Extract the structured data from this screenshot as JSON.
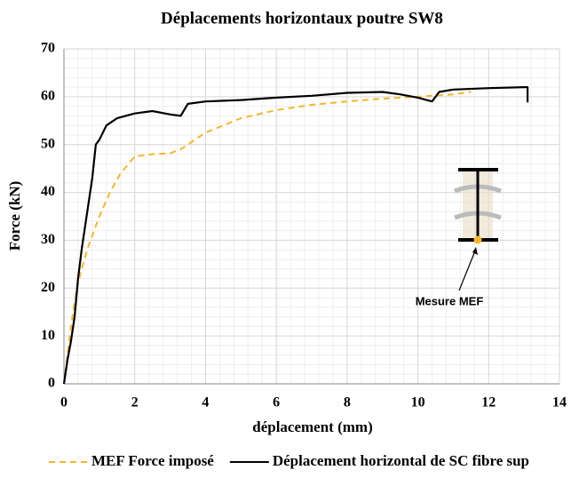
{
  "chart_data": {
    "type": "line",
    "title": "Déplacements horizontaux poutre SW8",
    "x_label": "déplacement (mm)",
    "y_label": "Force (kN)",
    "annotation": "Mesure MEF",
    "xlim": [
      0,
      14
    ],
    "xticks": [
      0,
      2,
      4,
      6,
      8,
      10,
      12,
      14
    ],
    "ylim": [
      0,
      70
    ],
    "yticks": [
      0,
      10,
      20,
      30,
      40,
      50,
      60,
      70
    ],
    "grid": true,
    "legend": "bottom",
    "series": [
      {
        "name": "MEF Force imposé",
        "color": "#f5b62a",
        "dashed": true,
        "x": [
          0,
          0.1,
          0.2,
          0.3,
          0.4,
          0.5,
          0.7,
          1.0,
          1.3,
          1.6,
          2.0,
          2.5,
          3.0,
          3.3,
          3.6,
          4.0,
          5.0,
          6.0,
          7.0,
          8.0,
          9.0,
          10.0,
          11.0,
          11.5
        ],
        "values": [
          0,
          6,
          12,
          17,
          21,
          24,
          29,
          35,
          40,
          44,
          47.5,
          48,
          48.2,
          49,
          50.5,
          52.5,
          55.5,
          57.2,
          58.3,
          59,
          59.6,
          60,
          60.5,
          61
        ]
      },
      {
        "name": "Déplacement horizontal de SC fibre sup",
        "color": "#000000",
        "dashed": false,
        "x": [
          0,
          0.1,
          0.2,
          0.3,
          0.4,
          0.5,
          0.6,
          0.7,
          0.8,
          0.9,
          1.0,
          1.2,
          1.5,
          2.0,
          2.5,
          3.0,
          3.3,
          3.5,
          4.0,
          5.0,
          6.0,
          7.0,
          8.0,
          9.0,
          9.5,
          10.0,
          10.4,
          10.6,
          11.0,
          12.0,
          13.0,
          13.1,
          13.1
        ],
        "values": [
          0,
          5,
          9,
          14,
          22,
          28,
          33,
          38,
          43,
          50,
          51,
          54,
          55.5,
          56.5,
          57,
          56.3,
          56,
          58.5,
          59,
          59.3,
          59.8,
          60.2,
          60.8,
          61,
          60.5,
          59.8,
          59,
          61,
          61.5,
          61.8,
          62,
          62,
          58.8
        ]
      }
    ]
  }
}
